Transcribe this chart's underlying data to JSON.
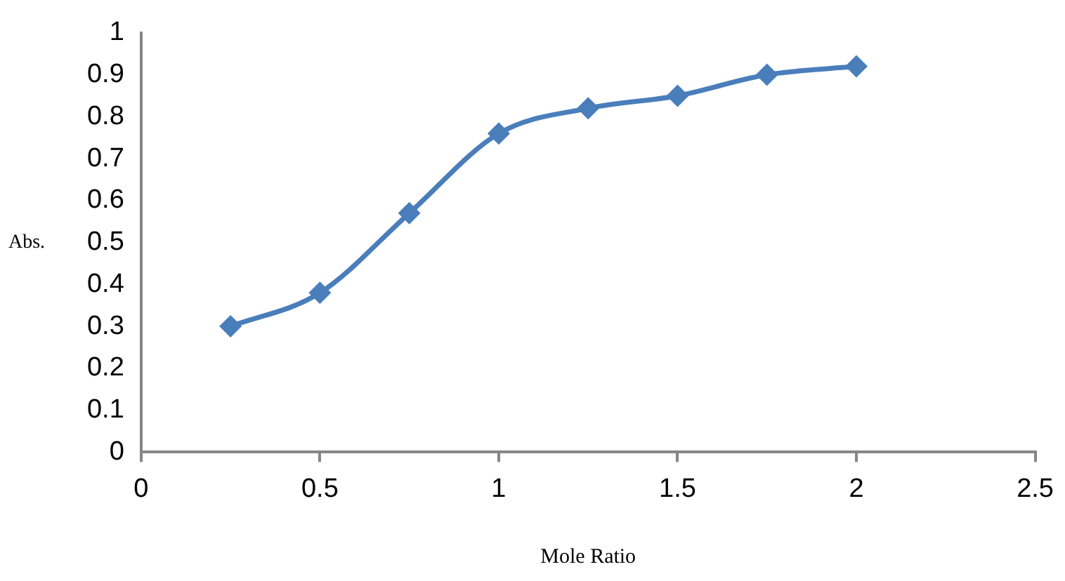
{
  "chart_data": {
    "type": "line",
    "xlabel": "Mole Ratio",
    "ylabel": "Abs.",
    "x": [
      0.25,
      0.5,
      0.75,
      1,
      1.25,
      1.5,
      1.75,
      2
    ],
    "series": [
      {
        "color": "#4a7ebb",
        "values": [
          0.3,
          0.38,
          0.57,
          0.76,
          0.82,
          0.85,
          0.9,
          0.92
        ]
      }
    ],
    "xlim": [
      0,
      2.5
    ],
    "xticks": [
      0,
      0.5,
      1,
      1.5,
      2,
      2.5
    ],
    "ylim": [
      0,
      1
    ],
    "yticks": [
      0,
      0.1,
      0.2,
      0.3,
      0.4,
      0.5,
      0.6,
      0.7,
      0.8,
      0.9,
      1
    ],
    "grid": false,
    "legend": false,
    "marker": "diamond",
    "line_style": "solid"
  }
}
